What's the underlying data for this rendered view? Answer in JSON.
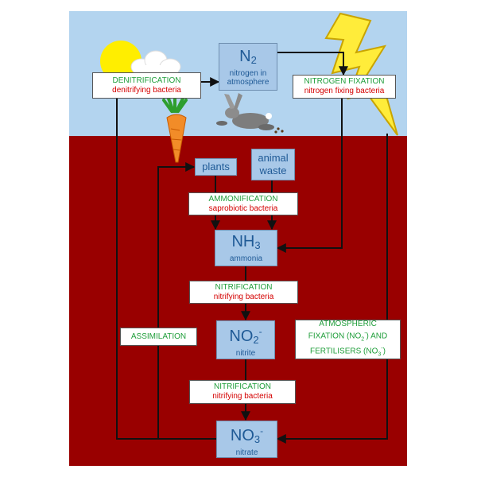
{
  "nodes": {
    "n2": {
      "symbol": "N",
      "symbol_sub": "2",
      "label": "nitrogen in atmosphere"
    },
    "plants": {
      "label": "plants"
    },
    "animal_waste": {
      "label": "animal waste"
    },
    "nh3": {
      "symbol": "NH",
      "symbol_sub": "3",
      "label": "ammonia"
    },
    "no2": {
      "symbol": "NO",
      "symbol_sub": "2",
      "symbol_sup": "-",
      "label": "nitrite"
    },
    "no3": {
      "symbol": "NO",
      "symbol_sub": "3",
      "symbol_sup": "-",
      "label": "nitrate"
    }
  },
  "processes": {
    "denitrification": {
      "title": "DENITRIFICATION",
      "agent": "denitrifying bacteria"
    },
    "nitrogen_fixation": {
      "title": "NITROGEN FIXATION",
      "agent": "nitrogen fixing bacteria"
    },
    "ammonification": {
      "title": "AMMONIFICATION",
      "agent": "saprobiotic bacteria"
    },
    "nitrification_1": {
      "title": "NITRIFICATION",
      "agent": "nitrifying bacteria"
    },
    "nitrification_2": {
      "title": "NITRIFICATION",
      "agent": "nitrifying bacteria"
    },
    "assimilation": {
      "title": "ASSIMILATION"
    },
    "atmospheric": {
      "line1": "ATMOSPHERIC",
      "line2_a": "FIXATION (NO",
      "line2_sub": "2",
      "line2_sup": "-",
      "line2_b": ") AND",
      "line3_a": "FERTILISERS (NO",
      "line3_sub": "3",
      "line3_sup": "-",
      "line3_b": ")"
    }
  },
  "colors": {
    "sky": "#b3d4ef",
    "soil": "#990000",
    "node_fill": "#a8c8e8",
    "node_text": "#1f5a96",
    "process_title": "#1f9e3a",
    "process_agent": "#d40000",
    "arrow": "#111111"
  },
  "icons": [
    "sun-icon",
    "cloud-icon",
    "lightning-icon",
    "rabbit-icon",
    "carrot-icon"
  ]
}
